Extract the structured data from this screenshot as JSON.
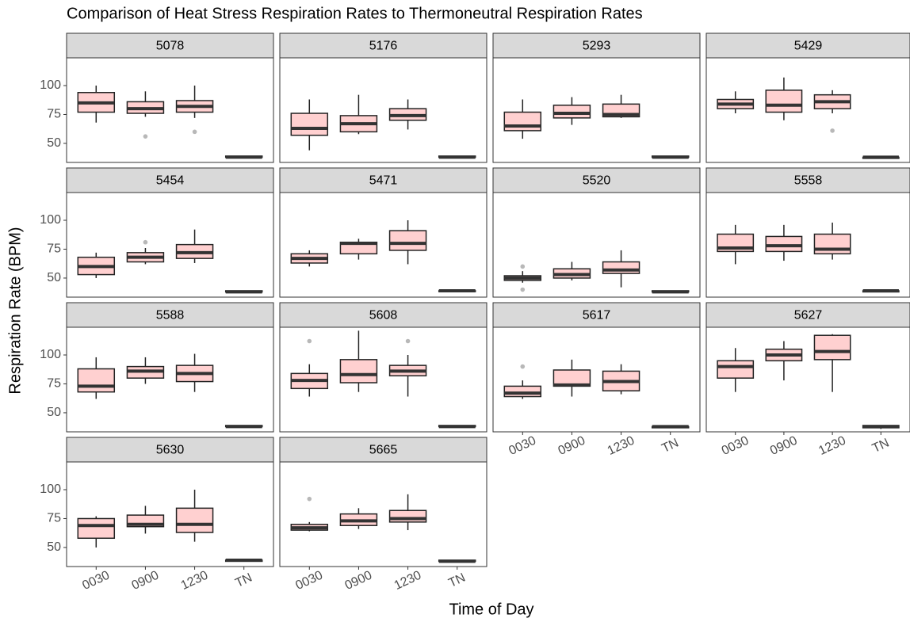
{
  "chart_data": {
    "type": "box",
    "title": "Comparison of Heat Stress Respiration Rates to Thermoneutral Respiration Rates",
    "x_label": "Time of Day",
    "y_label": "Respiration Rate (BPM)",
    "categories": [
      "0030",
      "0900",
      "1230",
      "TN"
    ],
    "ylim": [
      33.5,
      124
    ],
    "yticks": [
      50,
      75,
      100
    ],
    "grid": false,
    "box_color": "#ffd0d0",
    "outlier_color": "#b8b8b8",
    "panels": [
      {
        "name": "5078",
        "boxes": [
          {
            "min": 68,
            "q1": 77,
            "median": 85,
            "q3": 94,
            "max": 100,
            "outliers": []
          },
          {
            "min": 73,
            "q1": 76,
            "median": 80,
            "q3": 86,
            "max": 95,
            "outliers": [
              56
            ]
          },
          {
            "min": 72,
            "q1": 77,
            "median": 82,
            "q3": 87,
            "max": 100,
            "outliers": [
              60
            ]
          },
          {
            "min": 38,
            "q1": 38,
            "median": 38,
            "q3": 39,
            "max": 39,
            "outliers": []
          }
        ]
      },
      {
        "name": "5176",
        "boxes": [
          {
            "min": 44,
            "q1": 57,
            "median": 63,
            "q3": 76,
            "max": 88,
            "outliers": []
          },
          {
            "min": 58,
            "q1": 60,
            "median": 67,
            "q3": 74,
            "max": 92,
            "outliers": []
          },
          {
            "min": 62,
            "q1": 70,
            "median": 74,
            "q3": 80,
            "max": 88,
            "outliers": []
          },
          {
            "min": 38,
            "q1": 38,
            "median": 38,
            "q3": 39,
            "max": 39,
            "outliers": []
          }
        ]
      },
      {
        "name": "5293",
        "boxes": [
          {
            "min": 54,
            "q1": 61,
            "median": 65,
            "q3": 77,
            "max": 88,
            "outliers": []
          },
          {
            "min": 66,
            "q1": 72,
            "median": 76,
            "q3": 83,
            "max": 90,
            "outliers": []
          },
          {
            "min": 72,
            "q1": 73,
            "median": 75,
            "q3": 84,
            "max": 92,
            "outliers": []
          },
          {
            "min": 38,
            "q1": 38,
            "median": 38,
            "q3": 39,
            "max": 39,
            "outliers": []
          }
        ]
      },
      {
        "name": "5429",
        "boxes": [
          {
            "min": 76,
            "q1": 80,
            "median": 84,
            "q3": 88,
            "max": 95,
            "outliers": []
          },
          {
            "min": 70,
            "q1": 77,
            "median": 83,
            "q3": 96,
            "max": 107,
            "outliers": []
          },
          {
            "min": 76,
            "q1": 80,
            "median": 86,
            "q3": 92,
            "max": 96,
            "outliers": [
              61
            ]
          },
          {
            "min": 37,
            "q1": 37,
            "median": 38,
            "q3": 38,
            "max": 38,
            "outliers": []
          }
        ]
      },
      {
        "name": "5454",
        "boxes": [
          {
            "min": 50,
            "q1": 53,
            "median": 60,
            "q3": 68,
            "max": 72,
            "outliers": []
          },
          {
            "min": 62,
            "q1": 64,
            "median": 68,
            "q3": 72,
            "max": 76,
            "outliers": [
              81
            ]
          },
          {
            "min": 63,
            "q1": 67,
            "median": 72,
            "q3": 79,
            "max": 92,
            "outliers": []
          },
          {
            "min": 38,
            "q1": 38,
            "median": 38,
            "q3": 39,
            "max": 39,
            "outliers": []
          }
        ]
      },
      {
        "name": "5471",
        "boxes": [
          {
            "min": 60,
            "q1": 63,
            "median": 67,
            "q3": 71,
            "max": 74,
            "outliers": []
          },
          {
            "min": 66,
            "q1": 71,
            "median": 80,
            "q3": 81,
            "max": 84,
            "outliers": []
          },
          {
            "min": 62,
            "q1": 74,
            "median": 80,
            "q3": 91,
            "max": 100,
            "outliers": []
          },
          {
            "min": 38,
            "q1": 39,
            "median": 39,
            "q3": 39,
            "max": 40,
            "outliers": []
          }
        ]
      },
      {
        "name": "5520",
        "boxes": [
          {
            "min": 46,
            "q1": 48,
            "median": 50,
            "q3": 52,
            "max": 56,
            "outliers": [
              40,
              60
            ]
          },
          {
            "min": 48,
            "q1": 50,
            "median": 53,
            "q3": 58,
            "max": 64,
            "outliers": []
          },
          {
            "min": 42,
            "q1": 54,
            "median": 57,
            "q3": 64,
            "max": 74,
            "outliers": []
          },
          {
            "min": 38,
            "q1": 38,
            "median": 38,
            "q3": 39,
            "max": 39,
            "outliers": []
          }
        ]
      },
      {
        "name": "5558",
        "boxes": [
          {
            "min": 62,
            "q1": 73,
            "median": 76,
            "q3": 88,
            "max": 96,
            "outliers": []
          },
          {
            "min": 65,
            "q1": 73,
            "median": 78,
            "q3": 86,
            "max": 96,
            "outliers": []
          },
          {
            "min": 66,
            "q1": 71,
            "median": 75,
            "q3": 88,
            "max": 98,
            "outliers": []
          },
          {
            "min": 38,
            "q1": 38,
            "median": 39,
            "q3": 39,
            "max": 39,
            "outliers": []
          }
        ]
      },
      {
        "name": "5588",
        "boxes": [
          {
            "min": 62,
            "q1": 68,
            "median": 73,
            "q3": 88,
            "max": 98,
            "outliers": []
          },
          {
            "min": 75,
            "q1": 80,
            "median": 86,
            "q3": 90,
            "max": 98,
            "outliers": []
          },
          {
            "min": 68,
            "q1": 77,
            "median": 84,
            "q3": 91,
            "max": 101,
            "outliers": []
          },
          {
            "min": 38,
            "q1": 38,
            "median": 38,
            "q3": 39,
            "max": 39,
            "outliers": []
          }
        ]
      },
      {
        "name": "5608",
        "boxes": [
          {
            "min": 64,
            "q1": 71,
            "median": 78,
            "q3": 84,
            "max": 92,
            "outliers": [
              112
            ]
          },
          {
            "min": 68,
            "q1": 76,
            "median": 83,
            "q3": 96,
            "max": 121,
            "outliers": []
          },
          {
            "min": 64,
            "q1": 82,
            "median": 86,
            "q3": 91,
            "max": 100,
            "outliers": [
              112
            ]
          },
          {
            "min": 38,
            "q1": 38,
            "median": 38,
            "q3": 39,
            "max": 39,
            "outliers": []
          }
        ]
      },
      {
        "name": "5617",
        "boxes": [
          {
            "min": 62,
            "q1": 64,
            "median": 67,
            "q3": 73,
            "max": 78,
            "outliers": [
              90
            ]
          },
          {
            "min": 64,
            "q1": 73,
            "median": 74,
            "q3": 87,
            "max": 96,
            "outliers": []
          },
          {
            "min": 66,
            "q1": 69,
            "median": 77,
            "q3": 86,
            "max": 92,
            "outliers": []
          },
          {
            "min": 37,
            "q1": 37,
            "median": 38,
            "q3": 38,
            "max": 39,
            "outliers": []
          }
        ]
      },
      {
        "name": "5627",
        "boxes": [
          {
            "min": 68,
            "q1": 80,
            "median": 90,
            "q3": 95,
            "max": 106,
            "outliers": []
          },
          {
            "min": 78,
            "q1": 95,
            "median": 100,
            "q3": 105,
            "max": 112,
            "outliers": []
          },
          {
            "min": 68,
            "q1": 96,
            "median": 103,
            "q3": 117,
            "max": 118,
            "outliers": []
          },
          {
            "min": 36,
            "q1": 37,
            "median": 38,
            "q3": 39,
            "max": 39,
            "outliers": []
          }
        ]
      },
      {
        "name": "5630",
        "boxes": [
          {
            "min": 50,
            "q1": 58,
            "median": 69,
            "q3": 75,
            "max": 77,
            "outliers": []
          },
          {
            "min": 62,
            "q1": 68,
            "median": 70,
            "q3": 78,
            "max": 86,
            "outliers": []
          },
          {
            "min": 55,
            "q1": 63,
            "median": 70,
            "q3": 84,
            "max": 100,
            "outliers": []
          },
          {
            "min": 38,
            "q1": 38,
            "median": 39,
            "q3": 39,
            "max": 39,
            "outliers": []
          }
        ]
      },
      {
        "name": "5665",
        "boxes": [
          {
            "min": 64,
            "q1": 65,
            "median": 67,
            "q3": 70,
            "max": 72,
            "outliers": [
              92
            ]
          },
          {
            "min": 66,
            "q1": 69,
            "median": 73,
            "q3": 79,
            "max": 84,
            "outliers": []
          },
          {
            "min": 65,
            "q1": 72,
            "median": 75,
            "q3": 82,
            "max": 96,
            "outliers": []
          },
          {
            "min": 38,
            "q1": 38,
            "median": 38,
            "q3": 39,
            "max": 39,
            "outliers": []
          }
        ]
      }
    ]
  }
}
